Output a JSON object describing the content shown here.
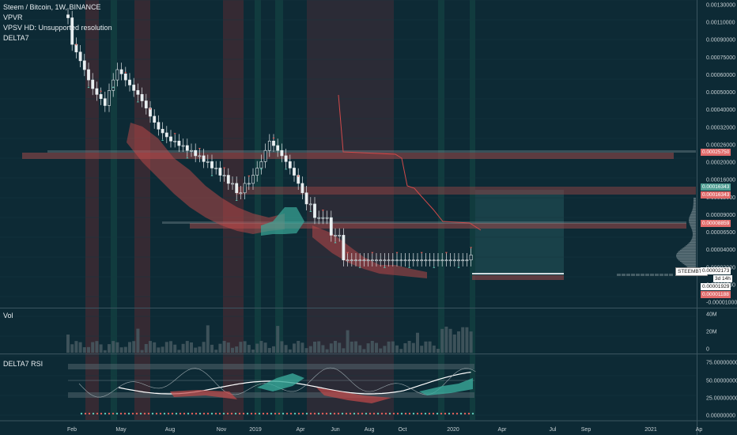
{
  "header": {
    "title": "Steem / Bitcoin, 1W, BINANCE",
    "indicators": [
      "VPVR",
      "VPSV HD: Unsupported resolution",
      "DELTA7"
    ]
  },
  "panes": {
    "volume_label": "Vol",
    "rsi_label": "DELTA7 RSI"
  },
  "price_axis": {
    "ticks": [
      "0.00130000",
      "0.00110000",
      "0.00090000",
      "0.00075000",
      "0.00060000",
      "0.00050000",
      "0.00040000",
      "0.00032000",
      "0.00026000",
      "0.00020000",
      "0.00016000",
      "0.00012000",
      "0.00009000",
      "0.00006500",
      "0.00004000",
      "0.00002000",
      "0.00000500",
      "-0.00001000"
    ],
    "tags": [
      {
        "value": "0.00025750",
        "color": "#e06a6a"
      },
      {
        "value": "0.00016343",
        "color": "#4f9e93"
      },
      {
        "value": "0.00016343",
        "color": "#e06a6a"
      },
      {
        "value": "0.00008859",
        "color": "#e06a6a"
      },
      {
        "value": "0.00002173",
        "color": "#ffffff"
      },
      {
        "value": "3d 14h",
        "color": "#ffffff"
      },
      {
        "value": "0.00001929",
        "color": "#ffffff"
      },
      {
        "value": "0.00001188",
        "color": "#e06a6a"
      }
    ],
    "ticker": "STEEMBTC"
  },
  "volume_axis": {
    "ticks": [
      "40M",
      "20M",
      "0"
    ]
  },
  "rsi_axis": {
    "ticks": [
      "75.00000000",
      "50.00000000",
      "25.00000000",
      "0.00000000"
    ]
  },
  "time_axis": {
    "ticks": [
      "Feb",
      "May",
      "Aug",
      "Nov",
      "2019",
      "Apr",
      "Jun",
      "Aug",
      "Oct",
      "2020",
      "Apr",
      "Jul",
      "Sep",
      "2021",
      "Ap"
    ]
  },
  "chart_data": {
    "type": "candlestick",
    "symbol": "STEEMBTC",
    "interval": "1W",
    "exchange": "BINANCE",
    "approx_close": [
      0.00105,
      0.00068,
      0.0006,
      0.00052,
      0.00045,
      0.00038,
      0.00033,
      0.0003,
      0.00028,
      0.00025,
      0.00032,
      0.00038,
      0.00045,
      0.00042,
      0.00038,
      0.00035,
      0.00032,
      0.0003,
      0.00027,
      0.00024,
      0.00021,
      0.00019,
      0.00017,
      0.00016,
      0.00015,
      0.00014,
      0.00014,
      0.00013,
      0.00013,
      0.00012,
      0.00012,
      0.00011,
      0.00011,
      0.0001,
      0.0001,
      9e-05,
      9e-05,
      8e-05,
      8e-05,
      7e-05,
      7e-05,
      6e-05,
      6e-05,
      7e-05,
      7e-05,
      8e-05,
      9e-05,
      0.0001,
      0.00012,
      0.00014,
      0.00013,
      0.00012,
      0.00011,
      0.0001,
      9e-05,
      8e-05,
      7e-05,
      6e-05,
      5e-05,
      5e-05,
      4e-05,
      4e-05,
      4e-05,
      4e-05,
      3e-05,
      3e-05,
      3e-05,
      2e-05,
      2e-05,
      2e-05,
      2e-05,
      2e-05,
      2e-05,
      2e-05,
      2e-05,
      2e-05,
      2e-05,
      2e-05,
      2e-05,
      2e-05,
      2e-05,
      2e-05,
      2e-05,
      2e-05,
      2e-05,
      2e-05,
      2e-05,
      2e-05,
      2e-05,
      2e-05,
      2e-05,
      2e-05,
      2e-05,
      2e-05,
      2e-05,
      2e-05,
      2e-05,
      2e-05,
      2.173e-05
    ],
    "horizontal_levels": [
      0.0002575,
      0.00016343,
      8.859e-05,
      1.929e-05,
      1.188e-05
    ],
    "rsi_levels": [
      75,
      50,
      25
    ],
    "colors": {
      "up": "#e8eef0",
      "down": "#e8eef0",
      "bear_band": "#c44a4a",
      "bull_band": "#3aa99a",
      "stop_line": "#d24a4a"
    }
  }
}
